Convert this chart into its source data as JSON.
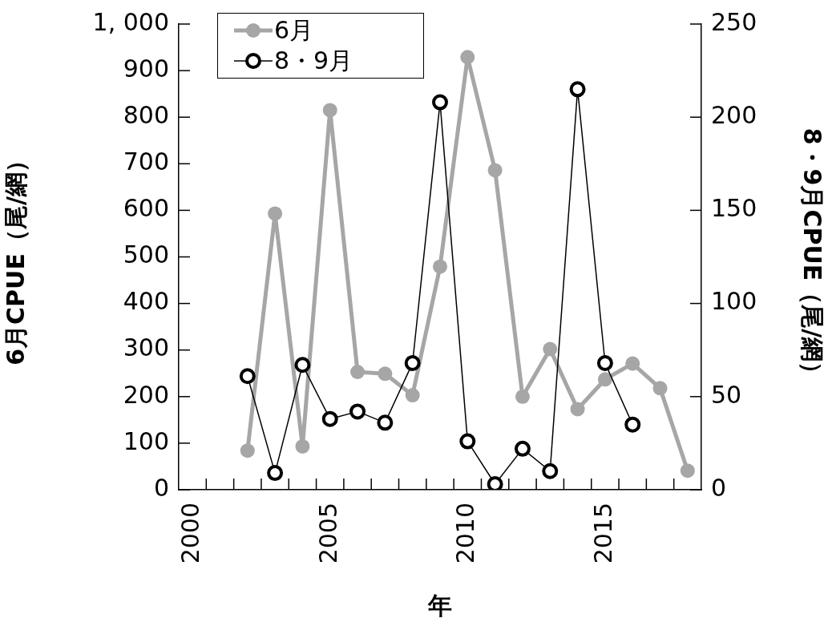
{
  "chart_data": {
    "type": "line",
    "xlabel": "年",
    "ylabel": "6月CPUE（尾/網）",
    "y2label": "8・9月CPUE（尾/網）",
    "categories": [
      "2000",
      null,
      null,
      null,
      null,
      "2005",
      null,
      null,
      null,
      null,
      "2010",
      null,
      null,
      null,
      null,
      "2015",
      null,
      null,
      null
    ],
    "series": [
      {
        "name": "6月",
        "color": "#a6a6a6",
        "values": [
          null,
          null,
          84,
          593,
          93,
          815,
          253,
          249,
          203,
          479,
          929,
          686,
          200,
          302,
          173,
          237,
          271,
          218,
          41
        ]
      },
      {
        "name": "8・9月",
        "color": "#000000",
        "axis": "y2",
        "values": [
          null,
          null,
          61,
          9,
          67,
          38,
          42,
          36,
          68,
          208,
          26,
          3,
          22,
          10,
          215,
          68,
          35,
          null,
          null
        ]
      }
    ],
    "ylim": [
      0,
      1000
    ],
    "yticks": [
      0,
      100,
      200,
      300,
      400,
      500,
      600,
      700,
      800,
      900,
      {
        "value": 1000,
        "label": "1, 000"
      }
    ],
    "y2lim": [
      0,
      250
    ],
    "y2ticks": [
      0,
      50,
      100,
      150,
      200,
      250
    ],
    "grid": false,
    "legend": "top left",
    "marker": "circle",
    "line_style": "solid"
  }
}
